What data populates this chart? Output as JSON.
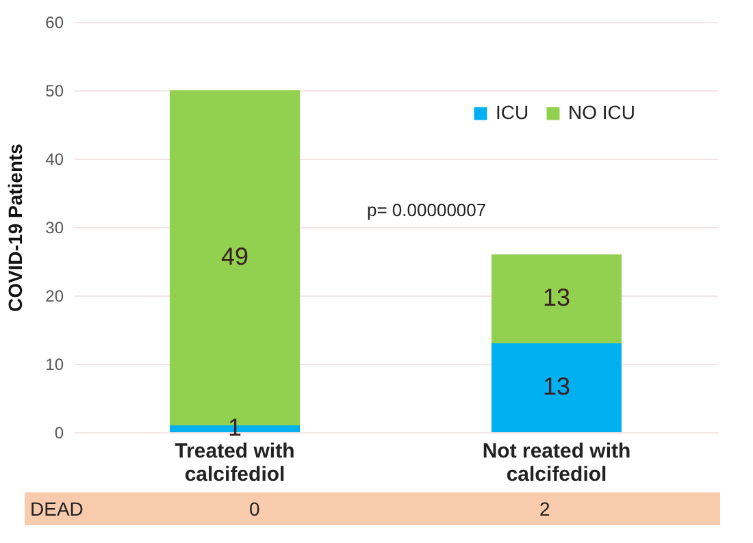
{
  "chart_data": {
    "type": "bar",
    "stacked": true,
    "ylabel": "COVID-19 Patients",
    "categories": [
      "Treated with\ncalcifediol",
      "Not reated with\ncalcifediol"
    ],
    "series": [
      {
        "name": "ICU",
        "color": "#00b0f0",
        "values": [
          1,
          13
        ]
      },
      {
        "name": "NO ICU",
        "color": "#92d050",
        "values": [
          49,
          13
        ]
      }
    ],
    "ylim": [
      0,
      60
    ],
    "yticks": [
      0,
      10,
      20,
      30,
      40,
      50,
      60
    ],
    "grid": "y",
    "legend": "top right",
    "data_labels": true,
    "annotations": [
      "p= 0.00000007",
      "DEAD",
      "0",
      "2"
    ]
  }
}
